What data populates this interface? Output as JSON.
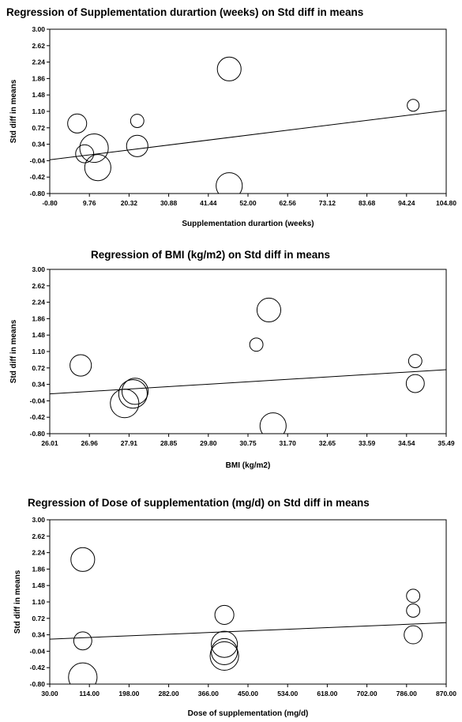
{
  "chart_data": [
    {
      "type": "scatter",
      "title": "Regression of Supplementation durartion (weeks) on Std diff in means",
      "xlabel": "Supplementation durartion (weeks)",
      "ylabel": "Std diff in means",
      "xlim": [
        -0.8,
        104.8
      ],
      "ylim": [
        -0.8,
        3.0
      ],
      "x_ticks": [
        "-0.80",
        "9.76",
        "20.32",
        "30.88",
        "41.44",
        "52.00",
        "62.56",
        "73.12",
        "83.68",
        "94.24",
        "104.80"
      ],
      "y_ticks": [
        "3.00",
        "2.62",
        "2.24",
        "1.86",
        "1.48",
        "1.10",
        "0.72",
        "0.34",
        "-0.04",
        "-0.42",
        "-0.80"
      ],
      "grid": false,
      "regression_line": [
        [
          -0.8,
          -0.02
        ],
        [
          104.8,
          1.12
        ]
      ],
      "points": [
        {
          "x": 6.5,
          "y": 0.82,
          "weight": 0.4
        },
        {
          "x": 8.5,
          "y": 0.12,
          "weight": 0.38
        },
        {
          "x": 11.0,
          "y": 0.25,
          "weight": 0.6
        },
        {
          "x": 12.0,
          "y": -0.2,
          "weight": 0.55
        },
        {
          "x": 22.5,
          "y": 0.3,
          "weight": 0.45
        },
        {
          "x": 22.5,
          "y": 0.88,
          "weight": 0.28
        },
        {
          "x": 47.0,
          "y": 2.08,
          "weight": 0.5
        },
        {
          "x": 47.0,
          "y": -0.62,
          "weight": 0.55
        },
        {
          "x": 96.0,
          "y": 1.24,
          "weight": 0.25
        }
      ]
    },
    {
      "type": "scatter",
      "title": "Regression of BMI (kg/m2) on Std diff in means",
      "xlabel": "BMI (kg/m2)",
      "ylabel": "Std diff in means",
      "xlim": [
        26.01,
        35.49
      ],
      "ylim": [
        -0.8,
        3.0
      ],
      "x_ticks": [
        "26.01",
        "26.96",
        "27.91",
        "28.85",
        "29.80",
        "30.75",
        "31.70",
        "32.65",
        "33.59",
        "34.54",
        "35.49"
      ],
      "y_ticks": [
        "3.00",
        "2.62",
        "2.24",
        "1.86",
        "1.48",
        "1.10",
        "0.72",
        "0.34",
        "-0.04",
        "-0.42",
        "-0.80"
      ],
      "grid": false,
      "regression_line": [
        [
          26.01,
          0.12
        ],
        [
          35.49,
          0.68
        ]
      ],
      "points": [
        {
          "x": 26.75,
          "y": 0.78,
          "weight": 0.45
        },
        {
          "x": 27.8,
          "y": -0.1,
          "weight": 0.6
        },
        {
          "x": 28.0,
          "y": 0.12,
          "weight": 0.6
        },
        {
          "x": 28.05,
          "y": 0.18,
          "weight": 0.55
        },
        {
          "x": 30.95,
          "y": 1.26,
          "weight": 0.28
        },
        {
          "x": 31.25,
          "y": 2.06,
          "weight": 0.5
        },
        {
          "x": 31.35,
          "y": -0.62,
          "weight": 0.55
        },
        {
          "x": 34.75,
          "y": 0.88,
          "weight": 0.28
        },
        {
          "x": 34.75,
          "y": 0.36,
          "weight": 0.38
        }
      ]
    },
    {
      "type": "scatter",
      "title": "Regression of Dose of supplementation (mg/d) on Std diff in means",
      "xlabel": "Dose of supplementation (mg/d)",
      "ylabel": "Std diff in means",
      "xlim": [
        30.0,
        870.0
      ],
      "ylim": [
        -0.8,
        3.0
      ],
      "x_ticks": [
        "30.00",
        "114.00",
        "198.00",
        "282.00",
        "366.00",
        "450.00",
        "534.00",
        "618.00",
        "702.00",
        "786.00",
        "870.00"
      ],
      "y_ticks": [
        "3.00",
        "2.62",
        "2.24",
        "1.86",
        "1.48",
        "1.10",
        "0.72",
        "0.34",
        "-0.04",
        "-0.42",
        "-0.80"
      ],
      "grid": false,
      "regression_line": [
        [
          30.0,
          0.24
        ],
        [
          870.0,
          0.62
        ]
      ],
      "points": [
        {
          "x": 100,
          "y": 2.08,
          "weight": 0.5
        },
        {
          "x": 100,
          "y": 0.2,
          "weight": 0.38
        },
        {
          "x": 100,
          "y": -0.64,
          "weight": 0.6
        },
        {
          "x": 400,
          "y": 0.8,
          "weight": 0.4
        },
        {
          "x": 400,
          "y": 0.12,
          "weight": 0.55
        },
        {
          "x": 400,
          "y": -0.05,
          "weight": 0.55
        },
        {
          "x": 400,
          "y": -0.15,
          "weight": 0.6
        },
        {
          "x": 800,
          "y": 1.24,
          "weight": 0.28
        },
        {
          "x": 800,
          "y": 0.9,
          "weight": 0.28
        },
        {
          "x": 800,
          "y": 0.34,
          "weight": 0.38
        }
      ]
    }
  ]
}
